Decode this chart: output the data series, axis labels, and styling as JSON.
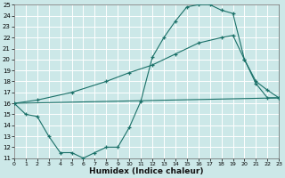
{
  "xlabel": "Humidex (Indice chaleur)",
  "bg_color": "#cce8e8",
  "grid_color": "#b0d8d8",
  "line_color": "#1a7068",
  "xlim": [
    0,
    23
  ],
  "ylim": [
    11,
    25
  ],
  "xticks": [
    0,
    1,
    2,
    3,
    4,
    5,
    6,
    7,
    8,
    9,
    10,
    11,
    12,
    13,
    14,
    15,
    16,
    17,
    18,
    19,
    20,
    21,
    22,
    23
  ],
  "yticks": [
    11,
    12,
    13,
    14,
    15,
    16,
    17,
    18,
    19,
    20,
    21,
    22,
    23,
    24,
    25
  ],
  "curve1_x": [
    0,
    1,
    2,
    3,
    4,
    5,
    6,
    7,
    8,
    9,
    10,
    11,
    12,
    13,
    14,
    15,
    16,
    17,
    18,
    19,
    20,
    21,
    22,
    23
  ],
  "curve1_y": [
    16,
    15,
    14.8,
    13,
    11.5,
    11.5,
    11,
    11.5,
    12,
    12,
    13.8,
    16.2,
    20.2,
    22,
    23.5,
    24.8,
    25,
    25,
    24.5,
    24.2,
    20,
    17.8,
    16.5,
    16.5
  ],
  "curve2_x": [
    0,
    23
  ],
  "curve2_y": [
    16,
    16.5
  ],
  "curve3_x": [
    0,
    2,
    5,
    8,
    10,
    12,
    14,
    16,
    18,
    19,
    20,
    21,
    22,
    23
  ],
  "curve3_y": [
    16,
    16.3,
    17.0,
    18.0,
    18.8,
    19.5,
    20.5,
    21.5,
    22.0,
    22.2,
    20.0,
    18.0,
    17.2,
    16.5
  ]
}
